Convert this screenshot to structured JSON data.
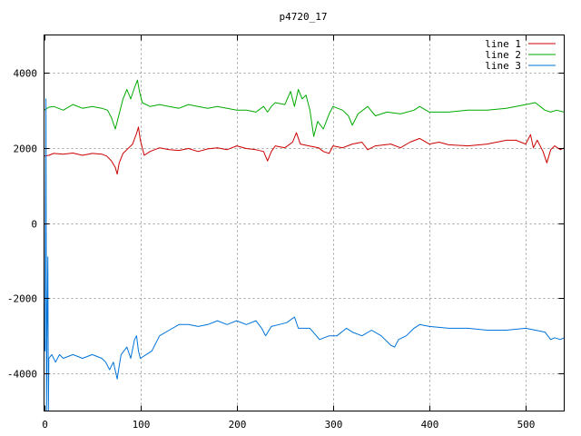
{
  "chart_data": {
    "type": "line",
    "title": "p4720_17",
    "xlabel": "",
    "ylabel": "",
    "xlim": [
      0,
      540
    ],
    "ylim": [
      -5000,
      5000
    ],
    "x_ticks": [
      0,
      100,
      200,
      300,
      400,
      500
    ],
    "y_ticks": [
      -4000,
      -2000,
      0,
      2000,
      4000
    ],
    "grid": true,
    "legend_position": "top-right",
    "series": [
      {
        "name": "line 1",
        "color": "#cc0000",
        "points": [
          [
            0,
            1780
          ],
          [
            5,
            1800
          ],
          [
            10,
            1850
          ],
          [
            20,
            1830
          ],
          [
            30,
            1860
          ],
          [
            40,
            1800
          ],
          [
            50,
            1850
          ],
          [
            60,
            1830
          ],
          [
            65,
            1780
          ],
          [
            70,
            1650
          ],
          [
            74,
            1480
          ],
          [
            76,
            1300
          ],
          [
            78,
            1600
          ],
          [
            82,
            1850
          ],
          [
            88,
            2000
          ],
          [
            92,
            2100
          ],
          [
            96,
            2380
          ],
          [
            98,
            2550
          ],
          [
            100,
            2200
          ],
          [
            104,
            1800
          ],
          [
            110,
            1900
          ],
          [
            120,
            2000
          ],
          [
            130,
            1950
          ],
          [
            140,
            1930
          ],
          [
            150,
            1980
          ],
          [
            160,
            1900
          ],
          [
            170,
            1970
          ],
          [
            180,
            2000
          ],
          [
            190,
            1950
          ],
          [
            200,
            2050
          ],
          [
            210,
            1980
          ],
          [
            220,
            1950
          ],
          [
            228,
            1900
          ],
          [
            232,
            1650
          ],
          [
            236,
            1900
          ],
          [
            240,
            2050
          ],
          [
            250,
            2000
          ],
          [
            258,
            2150
          ],
          [
            262,
            2400
          ],
          [
            266,
            2100
          ],
          [
            275,
            2050
          ],
          [
            285,
            2000
          ],
          [
            290,
            1900
          ],
          [
            296,
            1850
          ],
          [
            300,
            2050
          ],
          [
            310,
            2000
          ],
          [
            320,
            2100
          ],
          [
            330,
            2150
          ],
          [
            336,
            1950
          ],
          [
            344,
            2050
          ],
          [
            360,
            2100
          ],
          [
            370,
            2000
          ],
          [
            380,
            2150
          ],
          [
            390,
            2250
          ],
          [
            400,
            2100
          ],
          [
            410,
            2150
          ],
          [
            420,
            2080
          ],
          [
            440,
            2050
          ],
          [
            460,
            2100
          ],
          [
            480,
            2200
          ],
          [
            490,
            2200
          ],
          [
            500,
            2100
          ],
          [
            505,
            2350
          ],
          [
            508,
            2000
          ],
          [
            512,
            2200
          ],
          [
            518,
            1900
          ],
          [
            522,
            1600
          ],
          [
            526,
            1950
          ],
          [
            530,
            2050
          ],
          [
            536,
            1950
          ],
          [
            540,
            2000
          ]
        ]
      },
      {
        "name": "line 2",
        "color": "#00aa00",
        "points": [
          [
            0,
            3000
          ],
          [
            5,
            3080
          ],
          [
            10,
            3100
          ],
          [
            20,
            3000
          ],
          [
            30,
            3150
          ],
          [
            40,
            3050
          ],
          [
            50,
            3100
          ],
          [
            60,
            3050
          ],
          [
            66,
            3000
          ],
          [
            70,
            2800
          ],
          [
            74,
            2500
          ],
          [
            78,
            2900
          ],
          [
            82,
            3300
          ],
          [
            86,
            3550
          ],
          [
            90,
            3300
          ],
          [
            94,
            3600
          ],
          [
            97,
            3800
          ],
          [
            99,
            3500
          ],
          [
            102,
            3200
          ],
          [
            110,
            3100
          ],
          [
            120,
            3150
          ],
          [
            130,
            3100
          ],
          [
            140,
            3050
          ],
          [
            150,
            3150
          ],
          [
            160,
            3100
          ],
          [
            170,
            3050
          ],
          [
            180,
            3100
          ],
          [
            190,
            3050
          ],
          [
            200,
            3000
          ],
          [
            210,
            3000
          ],
          [
            220,
            2950
          ],
          [
            228,
            3100
          ],
          [
            232,
            2950
          ],
          [
            236,
            3100
          ],
          [
            240,
            3200
          ],
          [
            250,
            3150
          ],
          [
            256,
            3500
          ],
          [
            260,
            3100
          ],
          [
            264,
            3550
          ],
          [
            268,
            3300
          ],
          [
            272,
            3400
          ],
          [
            276,
            3000
          ],
          [
            280,
            2300
          ],
          [
            284,
            2700
          ],
          [
            290,
            2500
          ],
          [
            296,
            2900
          ],
          [
            300,
            3100
          ],
          [
            310,
            3000
          ],
          [
            316,
            2850
          ],
          [
            320,
            2600
          ],
          [
            326,
            2900
          ],
          [
            336,
            3100
          ],
          [
            344,
            2850
          ],
          [
            356,
            2950
          ],
          [
            370,
            2900
          ],
          [
            384,
            3000
          ],
          [
            390,
            3100
          ],
          [
            400,
            2950
          ],
          [
            420,
            2950
          ],
          [
            440,
            3000
          ],
          [
            460,
            3000
          ],
          [
            480,
            3050
          ],
          [
            500,
            3150
          ],
          [
            510,
            3200
          ],
          [
            520,
            3000
          ],
          [
            526,
            2950
          ],
          [
            532,
            3000
          ],
          [
            540,
            2950
          ]
        ]
      },
      {
        "name": "line 3",
        "color": "#0073d9",
        "points": [
          [
            0,
            -3100
          ],
          [
            1,
            -3400
          ],
          [
            2,
            3300
          ],
          [
            2.5,
            -5000
          ],
          [
            3,
            -3100
          ],
          [
            4,
            -900
          ],
          [
            4.5,
            -5000
          ],
          [
            5,
            -3600
          ],
          [
            8,
            -3500
          ],
          [
            12,
            -3700
          ],
          [
            16,
            -3500
          ],
          [
            20,
            -3600
          ],
          [
            30,
            -3500
          ],
          [
            40,
            -3600
          ],
          [
            50,
            -3500
          ],
          [
            60,
            -3600
          ],
          [
            64,
            -3700
          ],
          [
            68,
            -3900
          ],
          [
            72,
            -3700
          ],
          [
            76,
            -4150
          ],
          [
            78,
            -3800
          ],
          [
            80,
            -3500
          ],
          [
            86,
            -3300
          ],
          [
            90,
            -3600
          ],
          [
            94,
            -3100
          ],
          [
            96,
            -3000
          ],
          [
            98,
            -3400
          ],
          [
            100,
            -3600
          ],
          [
            106,
            -3500
          ],
          [
            112,
            -3400
          ],
          [
            120,
            -3000
          ],
          [
            130,
            -2850
          ],
          [
            140,
            -2700
          ],
          [
            150,
            -2700
          ],
          [
            160,
            -2750
          ],
          [
            170,
            -2700
          ],
          [
            180,
            -2600
          ],
          [
            190,
            -2700
          ],
          [
            200,
            -2600
          ],
          [
            210,
            -2700
          ],
          [
            220,
            -2600
          ],
          [
            226,
            -2800
          ],
          [
            230,
            -3000
          ],
          [
            236,
            -2750
          ],
          [
            244,
            -2700
          ],
          [
            252,
            -2650
          ],
          [
            260,
            -2500
          ],
          [
            264,
            -2800
          ],
          [
            270,
            -2800
          ],
          [
            276,
            -2800
          ],
          [
            286,
            -3100
          ],
          [
            296,
            -3000
          ],
          [
            304,
            -3000
          ],
          [
            314,
            -2800
          ],
          [
            320,
            -2900
          ],
          [
            330,
            -3000
          ],
          [
            340,
            -2850
          ],
          [
            350,
            -3000
          ],
          [
            360,
            -3250
          ],
          [
            364,
            -3300
          ],
          [
            368,
            -3100
          ],
          [
            376,
            -3000
          ],
          [
            384,
            -2800
          ],
          [
            390,
            -2700
          ],
          [
            400,
            -2750
          ],
          [
            420,
            -2800
          ],
          [
            440,
            -2800
          ],
          [
            460,
            -2850
          ],
          [
            480,
            -2850
          ],
          [
            500,
            -2800
          ],
          [
            510,
            -2850
          ],
          [
            520,
            -2900
          ],
          [
            526,
            -3100
          ],
          [
            530,
            -3050
          ],
          [
            536,
            -3100
          ],
          [
            540,
            -3050
          ]
        ]
      }
    ]
  }
}
